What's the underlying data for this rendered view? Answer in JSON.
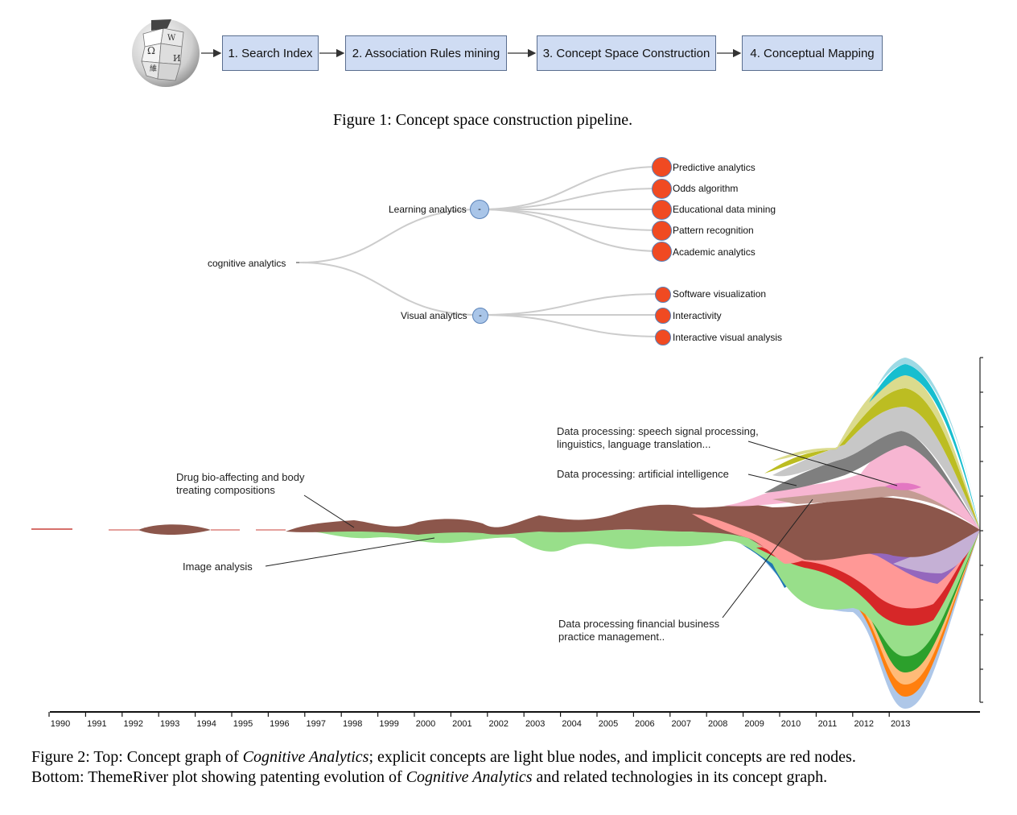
{
  "figure1": {
    "steps": [
      "1. Search Index",
      "2. Association Rules mining",
      "3. Concept Space Construction",
      "4. Conceptual Mapping"
    ],
    "caption": "Figure 1: Concept space construction pipeline.",
    "logo_icon": "wikipedia-globe-icon"
  },
  "concept_graph": {
    "root": "cognitive analytics",
    "root_toggle": "-",
    "explicit": [
      {
        "label": "Learning analytics",
        "toggle": "-",
        "children": [
          "Predictive analytics",
          "Odds algorithm",
          "Educational data mining",
          "Pattern recognition",
          "Academic analytics"
        ]
      },
      {
        "label": "Visual analytics",
        "toggle": "-",
        "children": [
          "Software visualization",
          "Interactivity",
          "Interactive visual analysis"
        ]
      }
    ],
    "colors": {
      "explicit": "#a9c5e8",
      "implicit": "#f04a22",
      "link": "#cccccc"
    }
  },
  "chart_data": {
    "type": "area",
    "subtype": "themeriver",
    "categories": [
      "1990",
      "1991",
      "1992",
      "1993",
      "1994",
      "1995",
      "1996",
      "1997",
      "1998",
      "1999",
      "2000",
      "2001",
      "2002",
      "2003",
      "2004",
      "2005",
      "2006",
      "2007",
      "2008",
      "2009",
      "2010",
      "2011",
      "2012",
      "2013"
    ],
    "annotations": [
      "Drug bio-affecting and body treating compositions",
      "Image analysis",
      "Data processing: speech signal processing, linguistics, language translation...",
      "Data processing: artificial intelligence",
      "Data processing financial business practice management.."
    ],
    "colors": {
      "drug": "#8c564b",
      "image": "#98df8a",
      "financial": "#ff9896",
      "ai": "#f7b6d2",
      "speech": "#c5b0d5"
    },
    "grid": false,
    "right_axis": true
  },
  "figure2": {
    "caption_line1_a": "Figure 2: Top: Concept graph of ",
    "caption_line1_b": "Cognitive Analytics",
    "caption_line1_c": "; explicit concepts are light blue nodes, and implicit concepts are red nodes.",
    "caption_line2_a": "Bottom: ThemeRiver plot showing patenting evolution of ",
    "caption_line2_b": "Cognitive Analytics",
    "caption_line2_c": " and related technologies in its concept graph."
  }
}
